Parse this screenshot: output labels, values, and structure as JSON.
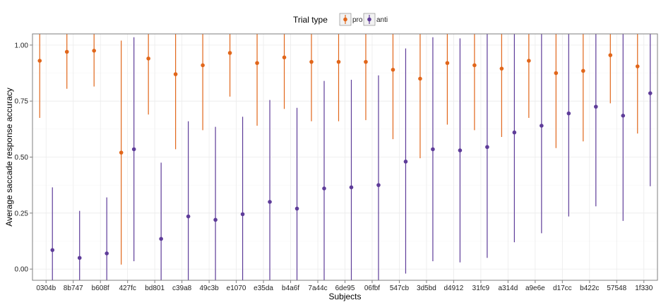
{
  "chart_data": {
    "type": "scatter",
    "xlabel": "Subjects",
    "ylabel": "Average saccade response accuracy",
    "ylim": [
      -0.05,
      1.05
    ],
    "yticks": [
      0.0,
      0.25,
      0.5,
      0.75,
      1.0
    ],
    "ytick_labels": [
      "0.00",
      "0.25",
      "0.50",
      "0.75",
      "1.00"
    ],
    "grid": true,
    "legend": {
      "title": "Trial type",
      "placement": "top-center"
    },
    "categories": [
      "0304b",
      "8b747",
      "b608f",
      "427fc",
      "bd801",
      "c39a8",
      "49c3b",
      "e1070",
      "e35da",
      "b4a6f",
      "7a44c",
      "6de95",
      "06fbf",
      "547cb",
      "3d5bd",
      "d4912",
      "31fc9",
      "a314d",
      "a9e6e",
      "d17cc",
      "b422c",
      "57548",
      "1f330"
    ],
    "series": [
      {
        "name": "pro",
        "color": "#E1661A",
        "values": [
          0.93,
          0.97,
          0.975,
          0.52,
          0.94,
          0.87,
          0.91,
          0.965,
          0.92,
          0.945,
          0.925,
          0.925,
          0.925,
          0.89,
          0.85,
          0.92,
          0.91,
          0.895,
          0.93,
          0.875,
          0.885,
          0.955,
          0.905
        ],
        "lower": [
          0.675,
          0.805,
          0.815,
          0.02,
          0.69,
          0.535,
          0.62,
          0.77,
          0.64,
          0.715,
          0.66,
          0.66,
          0.665,
          0.58,
          0.495,
          0.645,
          0.62,
          0.59,
          0.675,
          0.54,
          0.57,
          0.74,
          0.605
        ],
        "upper": [
          1.05,
          1.05,
          1.05,
          1.02,
          1.05,
          1.05,
          1.05,
          1.05,
          1.05,
          1.05,
          1.05,
          1.05,
          1.05,
          1.05,
          1.05,
          1.05,
          1.05,
          1.05,
          1.05,
          1.05,
          1.05,
          1.05,
          1.05
        ]
      },
      {
        "name": "anti",
        "color": "#5E3C99",
        "values": [
          0.085,
          0.05,
          0.07,
          0.535,
          0.135,
          0.235,
          0.22,
          0.245,
          0.3,
          0.27,
          0.36,
          0.365,
          0.375,
          0.48,
          0.535,
          0.53,
          0.545,
          0.61,
          0.64,
          0.695,
          0.725,
          0.685,
          0.785
        ],
        "lower": [
          -0.05,
          -0.05,
          -0.05,
          0.035,
          -0.05,
          -0.05,
          -0.05,
          -0.05,
          -0.05,
          -0.05,
          -0.05,
          -0.05,
          -0.05,
          -0.02,
          0.035,
          0.03,
          0.05,
          0.12,
          0.16,
          0.235,
          0.28,
          0.215,
          0.37
        ],
        "upper": [
          0.365,
          0.26,
          0.32,
          1.035,
          0.475,
          0.66,
          0.635,
          0.68,
          0.755,
          0.72,
          0.84,
          0.845,
          0.865,
          0.985,
          1.035,
          1.03,
          1.05,
          1.05,
          1.05,
          1.05,
          1.05,
          1.05,
          1.05
        ]
      }
    ]
  }
}
